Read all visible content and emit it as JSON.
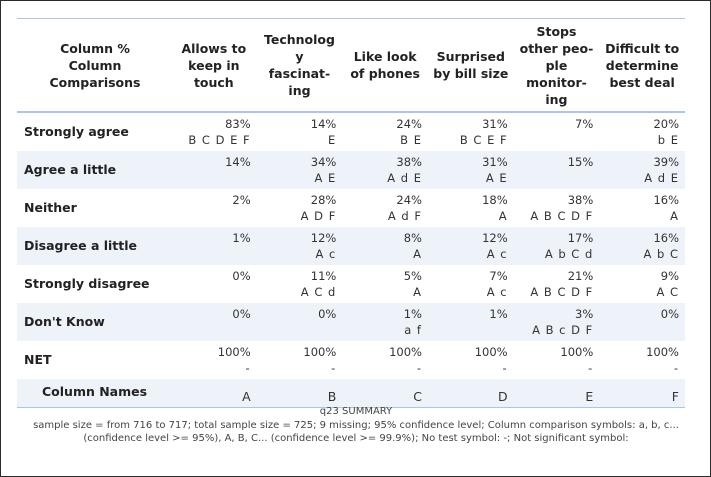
{
  "header": {
    "corner": [
      "Column %",
      "Column Comparisons"
    ],
    "columns": [
      {
        "label": [
          "Allows to",
          "keep in",
          "touch"
        ],
        "letter": "A"
      },
      {
        "label": [
          "Technolog",
          "y",
          "fascinat-",
          "ing"
        ],
        "letter": "B"
      },
      {
        "label": [
          "Like look",
          "of phones"
        ],
        "letter": "C"
      },
      {
        "label": [
          "Surprised",
          "by bill size"
        ],
        "letter": "D"
      },
      {
        "label": [
          "Stops",
          "other peo-",
          "ple",
          "monitor-",
          "ing"
        ],
        "letter": "E"
      },
      {
        "label": [
          "Difficult to",
          "determine",
          "best deal"
        ],
        "letter": "F"
      }
    ]
  },
  "rows": [
    {
      "label": "Strongly agree",
      "cells": [
        {
          "pct": "83%",
          "sig": "B C D E F"
        },
        {
          "pct": "14%",
          "sig": "E"
        },
        {
          "pct": "24%",
          "sig": "B E"
        },
        {
          "pct": "31%",
          "sig": "B C E F"
        },
        {
          "pct": "7%",
          "sig": ""
        },
        {
          "pct": "20%",
          "sig": "b E"
        }
      ]
    },
    {
      "label": "Agree a little",
      "cells": [
        {
          "pct": "14%",
          "sig": ""
        },
        {
          "pct": "34%",
          "sig": "A E"
        },
        {
          "pct": "38%",
          "sig": "A d E"
        },
        {
          "pct": "31%",
          "sig": "A E"
        },
        {
          "pct": "15%",
          "sig": ""
        },
        {
          "pct": "39%",
          "sig": "A d E"
        }
      ]
    },
    {
      "label": "Neither",
      "cells": [
        {
          "pct": "2%",
          "sig": ""
        },
        {
          "pct": "28%",
          "sig": "A D F"
        },
        {
          "pct": "24%",
          "sig": "A d F"
        },
        {
          "pct": "18%",
          "sig": "A"
        },
        {
          "pct": "38%",
          "sig": "A B C D F"
        },
        {
          "pct": "16%",
          "sig": "A"
        }
      ]
    },
    {
      "label": "Disagree a little",
      "cells": [
        {
          "pct": "1%",
          "sig": ""
        },
        {
          "pct": "12%",
          "sig": "A c"
        },
        {
          "pct": "8%",
          "sig": "A"
        },
        {
          "pct": "12%",
          "sig": "A c"
        },
        {
          "pct": "17%",
          "sig": "A b C d"
        },
        {
          "pct": "16%",
          "sig": "A b C"
        }
      ]
    },
    {
      "label": "Strongly disagree",
      "cells": [
        {
          "pct": "0%",
          "sig": ""
        },
        {
          "pct": "11%",
          "sig": "A C d"
        },
        {
          "pct": "5%",
          "sig": "A"
        },
        {
          "pct": "7%",
          "sig": "A c"
        },
        {
          "pct": "21%",
          "sig": "A B C D F"
        },
        {
          "pct": "9%",
          "sig": "A C"
        }
      ]
    },
    {
      "label": "Don't Know",
      "cells": [
        {
          "pct": "0%",
          "sig": ""
        },
        {
          "pct": "0%",
          "sig": ""
        },
        {
          "pct": "1%",
          "sig": "a f"
        },
        {
          "pct": "1%",
          "sig": ""
        },
        {
          "pct": "3%",
          "sig": "A B c D F"
        },
        {
          "pct": "0%",
          "sig": ""
        }
      ]
    },
    {
      "label": "NET",
      "cells": [
        {
          "pct": "100%",
          "sig": "-"
        },
        {
          "pct": "100%",
          "sig": "-"
        },
        {
          "pct": "100%",
          "sig": "-"
        },
        {
          "pct": "100%",
          "sig": "-"
        },
        {
          "pct": "100%",
          "sig": "-"
        },
        {
          "pct": "100%",
          "sig": "-"
        }
      ]
    }
  ],
  "colnames_label": "Column Names",
  "footer": {
    "title": "q23 SUMMARY",
    "note": "sample size = from 716 to 717; total sample size = 725; 9 missing; 95% confidence level; Column comparison symbols: a, b, c... (confidence level >= 95%), A, B, C... (confidence level >= 99.9%); No test symbol: -; Not significant symbol:"
  },
  "colors": {
    "border": "#a9c7e6",
    "stripe": "#eef3fa",
    "frame": "#2b2b2b"
  }
}
